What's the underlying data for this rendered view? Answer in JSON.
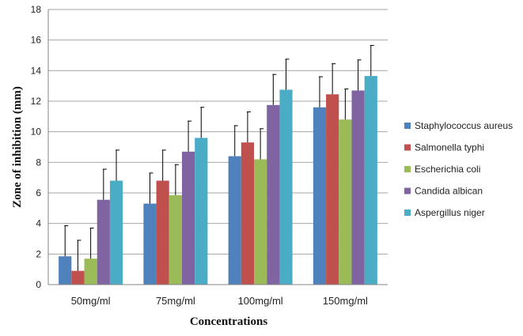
{
  "chart_data": {
    "type": "bar",
    "title": "",
    "xlabel": "Concentrations",
    "ylabel": "Zone of inhibition (mm)",
    "categories": [
      "50mg/ml",
      "75mg/ml",
      "100mg/ml",
      "150mg/ml"
    ],
    "ylim": [
      0,
      18
    ],
    "yticks": [
      0,
      2,
      4,
      6,
      8,
      10,
      12,
      14,
      16,
      18
    ],
    "grid": "horizontal",
    "legend_position": "right",
    "error_bars": true,
    "series": [
      {
        "name": "Staphylococcus aureus",
        "color": "#4F81BD",
        "values": [
          1.85,
          5.3,
          8.4,
          11.6
        ],
        "errors": [
          2.0,
          2.0,
          2.0,
          2.0
        ]
      },
      {
        "name": "Salmonella typhi",
        "color": "#C0504D",
        "values": [
          0.9,
          6.8,
          9.3,
          12.45
        ],
        "errors": [
          2.0,
          2.0,
          2.0,
          2.0
        ]
      },
      {
        "name": "Escherichia coli",
        "color": "#9BBB59",
        "values": [
          1.7,
          5.85,
          8.2,
          10.8
        ],
        "errors": [
          2.0,
          2.0,
          2.0,
          2.0
        ]
      },
      {
        "name": "Candida albican",
        "color": "#8064A2",
        "values": [
          5.55,
          8.7,
          11.75,
          12.7
        ],
        "errors": [
          2.0,
          2.0,
          2.0,
          2.0
        ]
      },
      {
        "name": "Aspergillus niger",
        "color": "#4BACC6",
        "values": [
          6.8,
          9.6,
          12.75,
          13.65
        ],
        "errors": [
          2.0,
          2.0,
          2.0,
          2.0
        ]
      }
    ]
  }
}
